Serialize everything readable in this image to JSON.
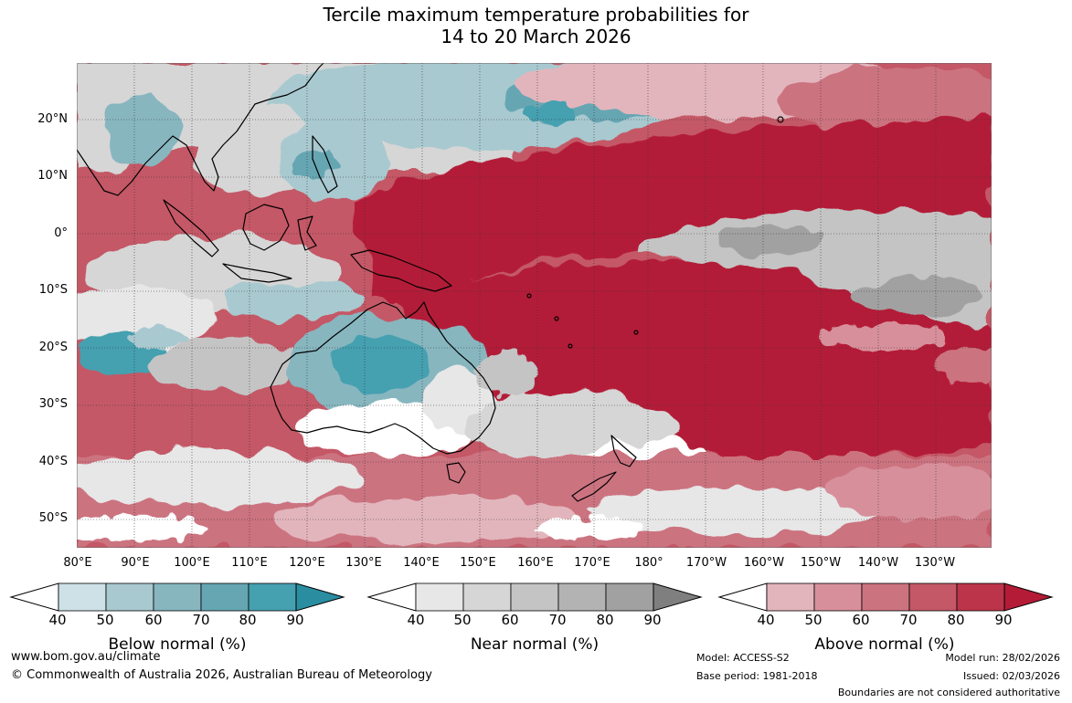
{
  "title": {
    "line1": "Tercile maximum temperature probabilities for",
    "line2": "14 to 20 March 2026"
  },
  "map": {
    "lat_labels": [
      "20°N",
      "10°N",
      "0°",
      "10°S",
      "20°S",
      "30°S",
      "40°S",
      "50°S"
    ],
    "lon_labels": [
      "80°E",
      "90°E",
      "100°E",
      "110°E",
      "120°E",
      "130°E",
      "140°E",
      "150°E",
      "160°E",
      "170°E",
      "180°",
      "170°W",
      "160°W",
      "150°W",
      "140°W",
      "130°W"
    ],
    "extent": {
      "lon": [
        80,
        240
      ],
      "lat": [
        -55,
        30
      ]
    },
    "graticule": "dotted"
  },
  "colorbars": [
    {
      "title": "Below normal (%)",
      "ticks": [
        "40",
        "50",
        "60",
        "70",
        "80",
        "90"
      ],
      "colors": [
        "#cde1e7",
        "#a8c9cf",
        "#87b6bf",
        "#66a6b3",
        "#45a0b0",
        "#2a8da0"
      ]
    },
    {
      "title": "Near normal (%)",
      "ticks": [
        "40",
        "50",
        "60",
        "70",
        "80",
        "90"
      ],
      "colors": [
        "#e7e7e7",
        "#d6d6d6",
        "#c4c4c4",
        "#b3b3b3",
        "#a1a1a1",
        "#7f7f7f"
      ]
    },
    {
      "title": "Above normal (%)",
      "ticks": [
        "40",
        "50",
        "60",
        "70",
        "80",
        "90"
      ],
      "colors": [
        "#e2b5bc",
        "#d7909b",
        "#cc7380",
        "#c45866",
        "#bc3449",
        "#b31b37"
      ]
    }
  ],
  "footer": {
    "url": "www.bom.gov.au/climate",
    "copyright": "© Commonwealth of Australia 2026, Australian Bureau of Meteorology",
    "model": "Model: ACCESS-S2",
    "base_period": "Base period: 1981-2018",
    "model_run": "Model run: 28/02/2026",
    "issued": "Issued: 02/03/2026",
    "disclaimer": "Boundaries are not considered authoritative"
  }
}
